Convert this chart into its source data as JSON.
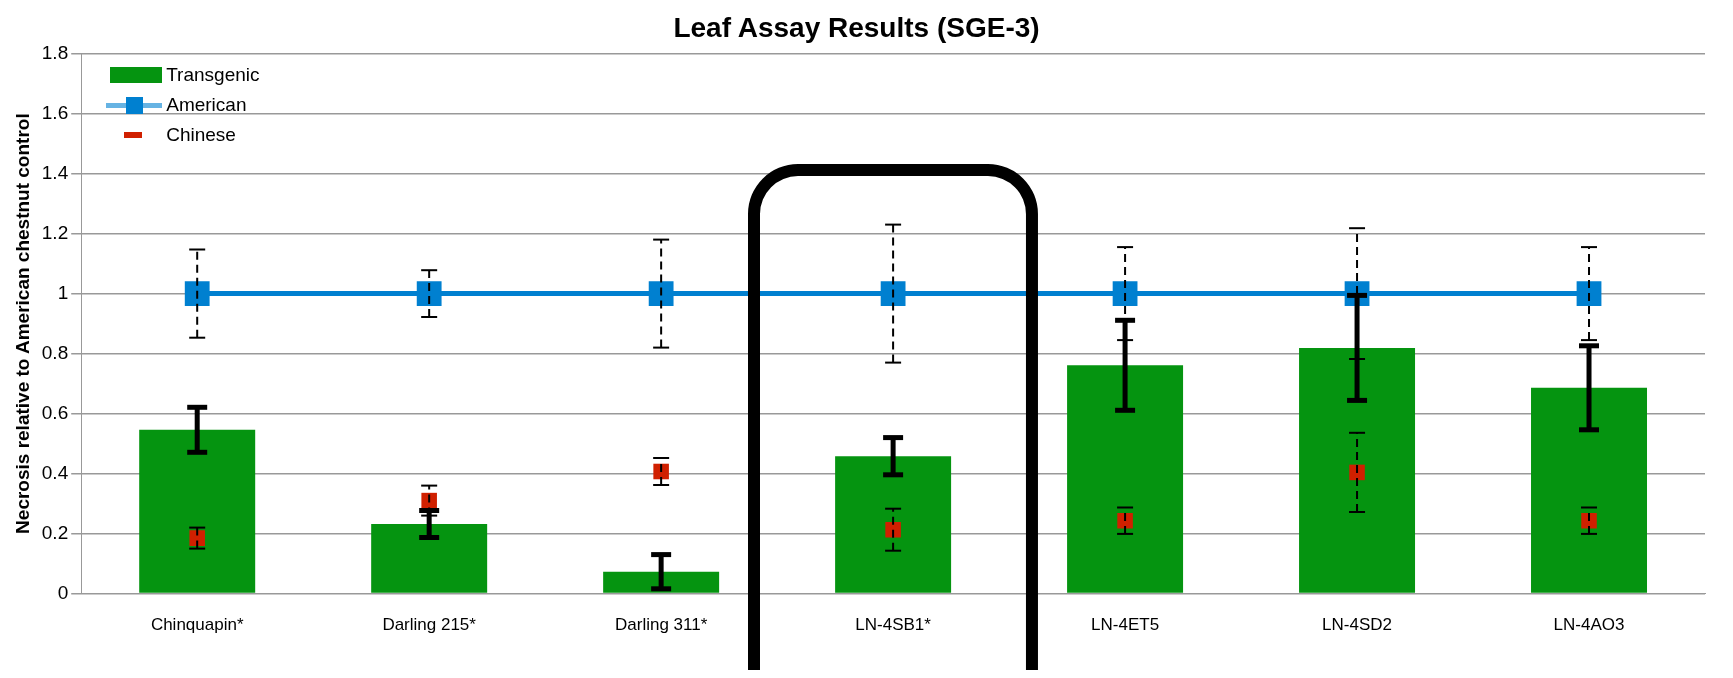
{
  "chart_data": {
    "type": "bar",
    "title": "Leaf Assay Results (SGE-3)",
    "ylabel": "Necrosis relative to American chestnut control",
    "categories": [
      "Chinquapin*",
      "Darling 215*",
      "Darling 311*",
      "LN-4SB1*",
      "LN-4ET5",
      "LN-4SD2",
      "LN-4AO3"
    ],
    "series": [
      {
        "name": "Transgenic",
        "color": "#059410",
        "values": [
          0.546,
          0.232,
          0.073,
          0.458,
          0.761,
          0.819,
          0.686
        ],
        "errors": [
          0.075,
          0.045,
          0.057,
          0.062,
          0.15,
          0.175,
          0.14
        ]
      },
      {
        "name": "American",
        "type": "line",
        "color": "#0080d0",
        "marker": "square",
        "values": [
          1,
          1,
          1,
          1,
          1,
          1,
          1
        ],
        "errors": [
          0.147,
          0.078,
          0.18,
          0.23,
          0.155,
          0.218,
          0.155
        ]
      },
      {
        "name": "Chinese",
        "type": "scatter",
        "color": "#d02000",
        "marker": "square",
        "values": [
          0.185,
          0.31,
          0.407,
          0.213,
          0.243,
          0.404,
          0.243
        ],
        "errors": [
          0.035,
          0.05,
          0.045,
          0.07,
          0.044,
          0.132,
          0.044
        ]
      }
    ],
    "ylim": [
      0,
      1.8
    ],
    "yticks": [
      0,
      0.2,
      0.4,
      0.6,
      0.8,
      1,
      1.2,
      1.4,
      1.6,
      1.8
    ],
    "grid": "y",
    "legend": "top left"
  }
}
